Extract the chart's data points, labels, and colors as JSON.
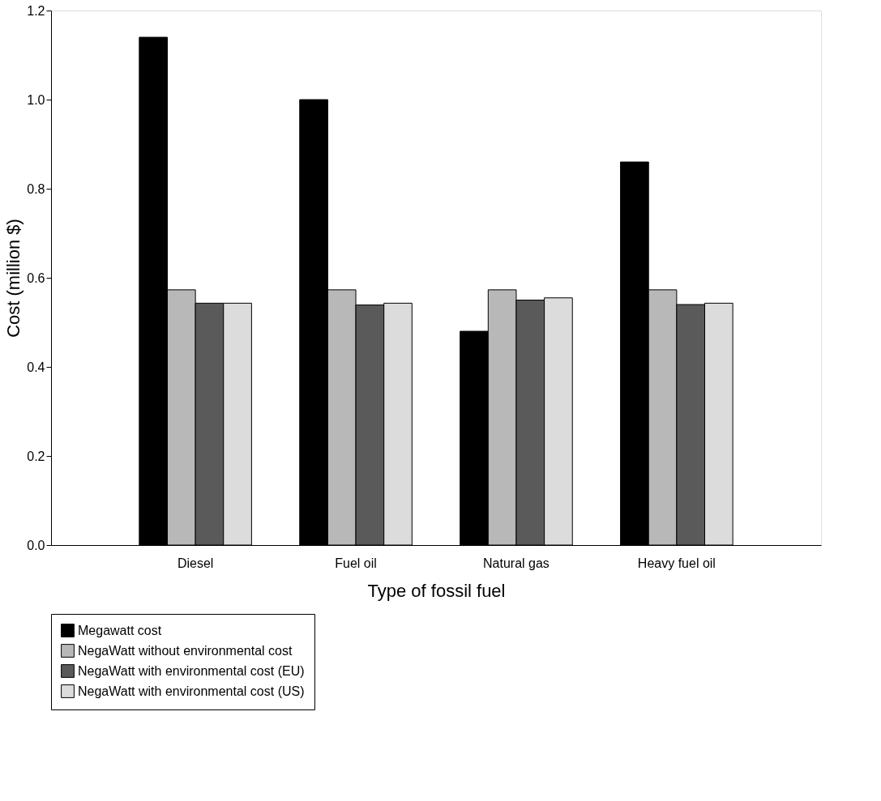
{
  "chart_data": {
    "type": "bar",
    "xlabel": "Type of fossil fuel",
    "ylabel": "Cost (million $)",
    "categories": [
      "Diesel",
      "Fuel oil",
      "Natural gas",
      "Heavy fuel oil"
    ],
    "series": [
      {
        "name": "Megawatt cost",
        "color": "#000000",
        "values": [
          1.14,
          1.0,
          0.48,
          0.86
        ]
      },
      {
        "name": "NegaWatt without environmental cost",
        "color": "#b8b8b8",
        "values": [
          0.573,
          0.573,
          0.573,
          0.573
        ]
      },
      {
        "name": "NegaWatt with environmental cost (EU)",
        "color": "#5a5a5a",
        "values": [
          0.543,
          0.539,
          0.55,
          0.54
        ]
      },
      {
        "name": "NegaWatt with environmental cost (US)",
        "color": "#dcdcdc",
        "values": [
          0.543,
          0.543,
          0.555,
          0.543
        ]
      }
    ],
    "ylim": [
      0,
      1.2
    ],
    "yticks": [
      {
        "value": 0,
        "label": "0.0"
      },
      0.2,
      0.4,
      0.6,
      0.8,
      {
        "value": 1,
        "label": "1.0"
      },
      1.2
    ],
    "grid": false,
    "legend": "bottom left"
  }
}
